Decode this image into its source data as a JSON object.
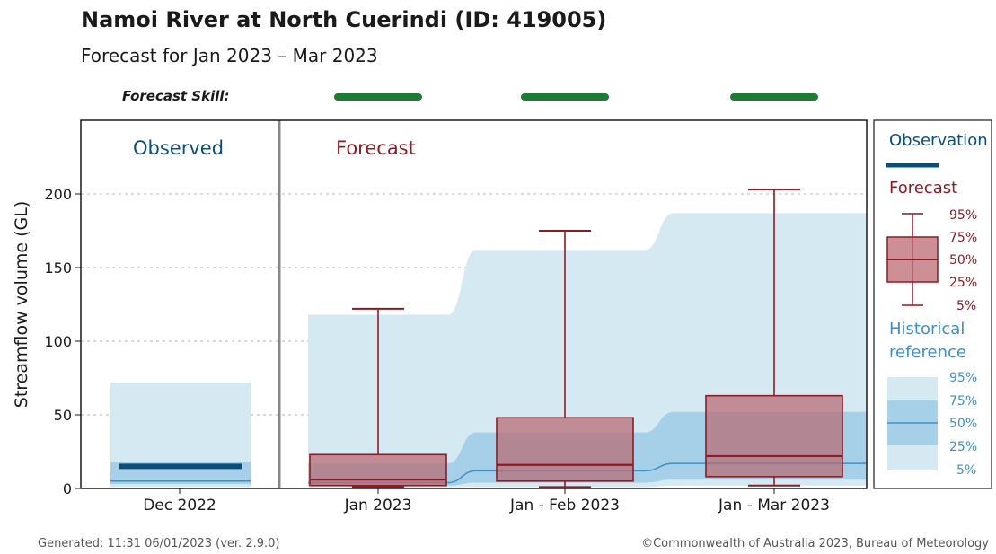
{
  "header": {
    "title": "Namoi River at North Cuerindi (ID: 419005)",
    "subtitle": "Forecast for Jan 2023 – Mar 2023",
    "skill_label": "Forecast Skill:"
  },
  "footer": {
    "generated": "Generated: 11:31 06/01/2023 (ver. 2.9.0)",
    "copyright": "©Commonwealth of Australia 2023, Bureau of Meteorology"
  },
  "colors": {
    "skill": "#1e7b34",
    "observed": "#0a4f7a",
    "forecast_fill": "#b96a72",
    "forecast_edge": "#8b1c24",
    "hist_outer": "#d5e9f3",
    "hist_inner": "#a6d0e8",
    "hist_median": "#3f8fc6"
  },
  "legend": {
    "observation_title": "Observation",
    "forecast_title": "Forecast",
    "historical_title_1": "Historical",
    "historical_title_2": "reference",
    "forecast_pcts": [
      "95%",
      "75%",
      "50%",
      "25%",
      "5%"
    ],
    "historical_pcts": [
      "95%",
      "75%",
      "50%",
      "25%",
      "5%"
    ]
  },
  "chart_data": {
    "type": "box",
    "ylabel": "Streamflow volume (GL)",
    "ylim": [
      0,
      250
    ],
    "yticks": [
      0,
      50,
      100,
      150,
      200
    ],
    "grid": true,
    "panel_labels": {
      "observed": "Observed",
      "forecast": "Forecast"
    },
    "categories": [
      "Dec 2022",
      "Jan 2023",
      "Jan - Feb 2023",
      "Jan - Mar 2023"
    ],
    "observed": {
      "category": "Dec 2022",
      "value": 15
    },
    "forecast_skill": [
      "good",
      "good",
      "good"
    ],
    "forecast": [
      {
        "category": "Jan 2023",
        "p5": 1,
        "p25": 2,
        "p50": 6,
        "p75": 23,
        "p95": 122
      },
      {
        "category": "Jan - Feb 2023",
        "p5": 1,
        "p25": 5,
        "p50": 16,
        "p75": 48,
        "p95": 175
      },
      {
        "category": "Jan - Mar 2023",
        "p5": 2,
        "p25": 8,
        "p50": 22,
        "p75": 63,
        "p95": 203
      }
    ],
    "historical_reference": [
      {
        "category": "Dec 2022",
        "p5": 1,
        "p25": 3,
        "p50": 5,
        "p75": 18,
        "p95": 72
      },
      {
        "category": "Jan 2023",
        "p5": 1,
        "p25": 2,
        "p50": 4,
        "p75": 17,
        "p95": 118
      },
      {
        "category": "Jan - Feb 2023",
        "p5": 1,
        "p25": 4,
        "p50": 12,
        "p75": 38,
        "p95": 162
      },
      {
        "category": "Jan - Mar 2023",
        "p5": 2,
        "p25": 6,
        "p50": 17,
        "p75": 52,
        "p95": 187
      }
    ]
  }
}
